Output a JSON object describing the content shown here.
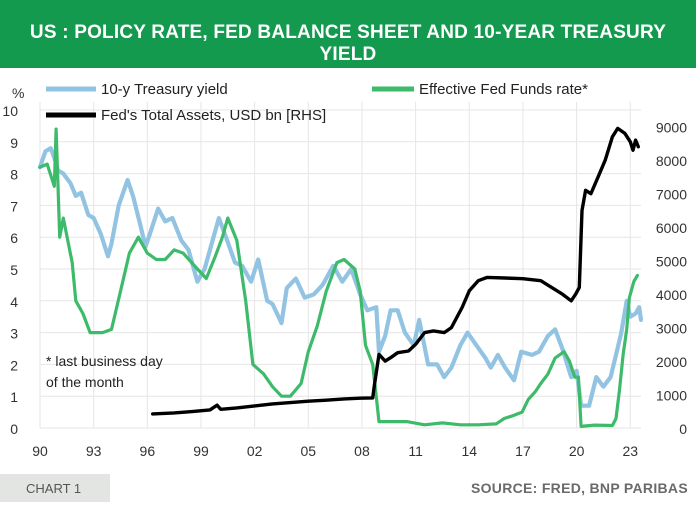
{
  "header": {
    "title": "US : POLICY RATE, FED BALANCE SHEET AND 10-YEAR TREASURY YIELD"
  },
  "footer": {
    "chart_label": "CHART 1",
    "source": "SOURCE: FRED, BNP PARIBAS"
  },
  "colors": {
    "banner": "#139a4f",
    "treasury": "#92c3e3",
    "fedfunds": "#3dba6a",
    "assets": "#000000"
  },
  "chart_data": {
    "type": "line",
    "title": "US : POLICY RATE, FED BALANCE SHEET AND 10-YEAR TREASURY YIELD",
    "ylabel_left": "%",
    "ylim_left": [
      0,
      10
    ],
    "yticks_left": [
      "0",
      "1",
      "2",
      "3",
      "4",
      "5",
      "6",
      "7",
      "8",
      "9",
      "10"
    ],
    "ylim_right": [
      0,
      9500
    ],
    "yticks_right": [
      "0",
      "1000",
      "2000",
      "3000",
      "4000",
      "5000",
      "6000",
      "7000",
      "8000",
      "9000"
    ],
    "xlim": [
      1990,
      2023.6
    ],
    "x_ticks": [
      {
        "x": 1990,
        "label": "90"
      },
      {
        "x": 1993,
        "label": "93"
      },
      {
        "x": 1996,
        "label": "96"
      },
      {
        "x": 1999,
        "label": "99"
      },
      {
        "x": 2002,
        "label": "02"
      },
      {
        "x": 2005,
        "label": "05"
      },
      {
        "x": 2008,
        "label": "08"
      },
      {
        "x": 2011,
        "label": "11"
      },
      {
        "x": 2014,
        "label": "14"
      },
      {
        "x": 2017,
        "label": "17"
      },
      {
        "x": 2020,
        "label": "20"
      },
      {
        "x": 2023,
        "label": "23"
      }
    ],
    "legend": [
      {
        "label": "10-y Treasury yield",
        "series": "treasury"
      },
      {
        "label": "Effective Fed Funds rate*",
        "series": "fedfunds"
      },
      {
        "label": "Fed's Total Assets, USD bn [RHS]",
        "series": "assets"
      }
    ],
    "annotation": [
      "* last business day",
      "of the month"
    ],
    "series": [
      {
        "key": "treasury",
        "name": "10-y Treasury yield",
        "axis": "left",
        "points": [
          [
            1990.0,
            8.2
          ],
          [
            1990.3,
            8.7
          ],
          [
            1990.6,
            8.8
          ],
          [
            1990.8,
            8.5
          ],
          [
            1991.0,
            8.1
          ],
          [
            1991.3,
            8.0
          ],
          [
            1991.7,
            7.7
          ],
          [
            1992.0,
            7.3
          ],
          [
            1992.3,
            7.4
          ],
          [
            1992.7,
            6.7
          ],
          [
            1993.0,
            6.6
          ],
          [
            1993.4,
            6.1
          ],
          [
            1993.8,
            5.4
          ],
          [
            1994.0,
            5.8
          ],
          [
            1994.4,
            7.0
          ],
          [
            1994.9,
            7.8
          ],
          [
            1995.2,
            7.3
          ],
          [
            1995.6,
            6.4
          ],
          [
            1995.9,
            5.7
          ],
          [
            1996.2,
            6.2
          ],
          [
            1996.6,
            6.9
          ],
          [
            1997.0,
            6.5
          ],
          [
            1997.4,
            6.6
          ],
          [
            1997.9,
            5.9
          ],
          [
            1998.3,
            5.6
          ],
          [
            1998.8,
            4.6
          ],
          [
            1999.2,
            5.0
          ],
          [
            1999.7,
            6.0
          ],
          [
            2000.0,
            6.6
          ],
          [
            2000.4,
            6.0
          ],
          [
            2000.9,
            5.2
          ],
          [
            2001.3,
            5.1
          ],
          [
            2001.8,
            4.6
          ],
          [
            2002.2,
            5.3
          ],
          [
            2002.7,
            4.0
          ],
          [
            2003.0,
            3.9
          ],
          [
            2003.5,
            3.3
          ],
          [
            2003.8,
            4.4
          ],
          [
            2004.3,
            4.7
          ],
          [
            2004.8,
            4.1
          ],
          [
            2005.3,
            4.2
          ],
          [
            2005.8,
            4.5
          ],
          [
            2006.4,
            5.1
          ],
          [
            2006.9,
            4.6
          ],
          [
            2007.4,
            5.0
          ],
          [
            2007.9,
            4.2
          ],
          [
            2008.3,
            3.7
          ],
          [
            2008.8,
            3.8
          ],
          [
            2008.95,
            2.4
          ],
          [
            2009.3,
            2.9
          ],
          [
            2009.6,
            3.7
          ],
          [
            2010.0,
            3.7
          ],
          [
            2010.4,
            3.0
          ],
          [
            2010.9,
            2.6
          ],
          [
            2011.2,
            3.4
          ],
          [
            2011.7,
            2.0
          ],
          [
            2012.2,
            2.0
          ],
          [
            2012.6,
            1.6
          ],
          [
            2013.0,
            1.9
          ],
          [
            2013.5,
            2.6
          ],
          [
            2013.9,
            3.0
          ],
          [
            2014.4,
            2.6
          ],
          [
            2014.9,
            2.2
          ],
          [
            2015.2,
            1.9
          ],
          [
            2015.6,
            2.3
          ],
          [
            2016.0,
            1.9
          ],
          [
            2016.5,
            1.5
          ],
          [
            2016.9,
            2.4
          ],
          [
            2017.5,
            2.3
          ],
          [
            2017.9,
            2.4
          ],
          [
            2018.4,
            2.9
          ],
          [
            2018.8,
            3.1
          ],
          [
            2019.2,
            2.5
          ],
          [
            2019.7,
            1.6
          ],
          [
            2020.0,
            1.8
          ],
          [
            2020.25,
            0.7
          ],
          [
            2020.7,
            0.7
          ],
          [
            2021.1,
            1.6
          ],
          [
            2021.5,
            1.3
          ],
          [
            2021.9,
            1.6
          ],
          [
            2022.2,
            2.3
          ],
          [
            2022.5,
            3.0
          ],
          [
            2022.8,
            4.0
          ],
          [
            2023.0,
            3.5
          ],
          [
            2023.3,
            3.6
          ],
          [
            2023.5,
            3.8
          ],
          [
            2023.6,
            3.4
          ]
        ]
      },
      {
        "key": "fedfunds",
        "name": "Effective Fed Funds rate*",
        "axis": "left",
        "points": [
          [
            1990.0,
            8.2
          ],
          [
            1990.4,
            8.3
          ],
          [
            1990.8,
            7.6
          ],
          [
            1990.9,
            9.4
          ],
          [
            1991.1,
            6.0
          ],
          [
            1991.3,
            6.6
          ],
          [
            1991.8,
            5.2
          ],
          [
            1992.0,
            4.0
          ],
          [
            1992.4,
            3.6
          ],
          [
            1992.8,
            3.0
          ],
          [
            1993.0,
            3.0
          ],
          [
            1993.5,
            3.0
          ],
          [
            1994.0,
            3.1
          ],
          [
            1994.5,
            4.3
          ],
          [
            1995.0,
            5.5
          ],
          [
            1995.5,
            6.0
          ],
          [
            1996.0,
            5.5
          ],
          [
            1996.5,
            5.3
          ],
          [
            1997.0,
            5.3
          ],
          [
            1997.5,
            5.6
          ],
          [
            1998.0,
            5.5
          ],
          [
            1998.8,
            5.0
          ],
          [
            1999.3,
            4.7
          ],
          [
            1999.8,
            5.4
          ],
          [
            2000.2,
            6.0
          ],
          [
            2000.5,
            6.6
          ],
          [
            2001.0,
            5.9
          ],
          [
            2001.5,
            4.0
          ],
          [
            2001.9,
            2.0
          ],
          [
            2002.5,
            1.7
          ],
          [
            2003.0,
            1.3
          ],
          [
            2003.5,
            1.0
          ],
          [
            2004.0,
            1.0
          ],
          [
            2004.6,
            1.4
          ],
          [
            2005.0,
            2.4
          ],
          [
            2005.5,
            3.2
          ],
          [
            2006.0,
            4.3
          ],
          [
            2006.6,
            5.2
          ],
          [
            2007.0,
            5.3
          ],
          [
            2007.6,
            5.0
          ],
          [
            2007.9,
            4.3
          ],
          [
            2008.2,
            2.6
          ],
          [
            2008.6,
            2.0
          ],
          [
            2008.95,
            0.2
          ],
          [
            2009.5,
            0.2
          ],
          [
            2010.5,
            0.2
          ],
          [
            2011.5,
            0.1
          ],
          [
            2012.5,
            0.16
          ],
          [
            2013.5,
            0.1
          ],
          [
            2014.5,
            0.1
          ],
          [
            2015.5,
            0.13
          ],
          [
            2015.95,
            0.3
          ],
          [
            2016.5,
            0.4
          ],
          [
            2016.95,
            0.5
          ],
          [
            2017.3,
            0.9
          ],
          [
            2017.7,
            1.15
          ],
          [
            2018.0,
            1.4
          ],
          [
            2018.4,
            1.7
          ],
          [
            2018.8,
            2.2
          ],
          [
            2019.3,
            2.4
          ],
          [
            2019.6,
            2.1
          ],
          [
            2019.9,
            1.6
          ],
          [
            2020.1,
            1.6
          ],
          [
            2020.25,
            0.05
          ],
          [
            2021.0,
            0.09
          ],
          [
            2022.0,
            0.08
          ],
          [
            2022.2,
            0.3
          ],
          [
            2022.4,
            1.2
          ],
          [
            2022.6,
            2.3
          ],
          [
            2022.8,
            3.1
          ],
          [
            2022.95,
            4.1
          ],
          [
            2023.2,
            4.6
          ],
          [
            2023.4,
            4.8
          ]
        ]
      },
      {
        "key": "assets",
        "name": "Fed's Total Assets, USD bn [RHS]",
        "axis": "right",
        "points": [
          [
            1996.3,
            420
          ],
          [
            1997.5,
            450
          ],
          [
            1998.5,
            490
          ],
          [
            1999.5,
            540
          ],
          [
            1999.9,
            680
          ],
          [
            2000.1,
            560
          ],
          [
            2001.0,
            600
          ],
          [
            2002.0,
            660
          ],
          [
            2003.0,
            720
          ],
          [
            2004.0,
            760
          ],
          [
            2005.0,
            800
          ],
          [
            2006.0,
            830
          ],
          [
            2007.0,
            870
          ],
          [
            2007.9,
            890
          ],
          [
            2008.6,
            900
          ],
          [
            2008.7,
            1300
          ],
          [
            2008.95,
            2200
          ],
          [
            2009.3,
            2000
          ],
          [
            2009.6,
            2100
          ],
          [
            2010.0,
            2250
          ],
          [
            2010.6,
            2300
          ],
          [
            2011.0,
            2500
          ],
          [
            2011.5,
            2850
          ],
          [
            2012.0,
            2900
          ],
          [
            2012.6,
            2850
          ],
          [
            2013.0,
            3000
          ],
          [
            2013.6,
            3600
          ],
          [
            2014.0,
            4100
          ],
          [
            2014.5,
            4400
          ],
          [
            2015.0,
            4500
          ],
          [
            2016.0,
            4480
          ],
          [
            2017.0,
            4460
          ],
          [
            2018.0,
            4400
          ],
          [
            2018.6,
            4200
          ],
          [
            2019.2,
            4000
          ],
          [
            2019.7,
            3800
          ],
          [
            2019.95,
            4000
          ],
          [
            2020.15,
            4200
          ],
          [
            2020.3,
            6500
          ],
          [
            2020.5,
            7100
          ],
          [
            2020.8,
            7000
          ],
          [
            2021.2,
            7500
          ],
          [
            2021.6,
            8000
          ],
          [
            2022.0,
            8700
          ],
          [
            2022.3,
            8950
          ],
          [
            2022.7,
            8800
          ],
          [
            2023.0,
            8550
          ],
          [
            2023.15,
            8300
          ],
          [
            2023.3,
            8600
          ],
          [
            2023.45,
            8400
          ]
        ]
      }
    ]
  }
}
